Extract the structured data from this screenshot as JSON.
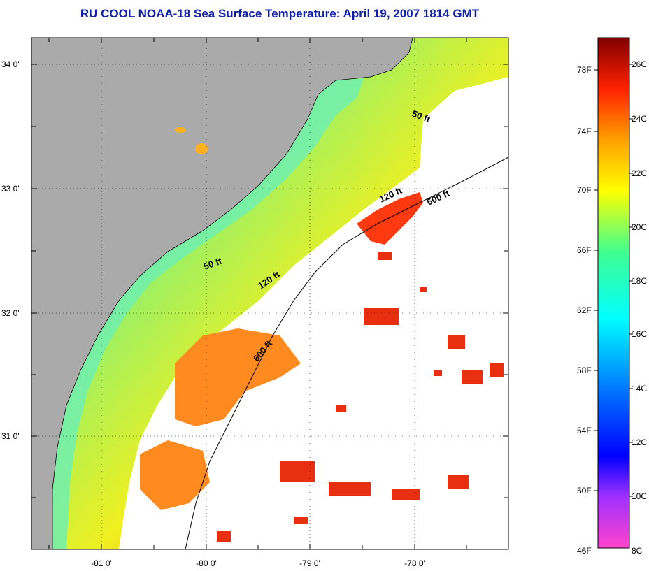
{
  "title": "RU COOL  NOAA-18  Sea Surface Temperature:  April 19, 2007 1814 GMT",
  "map": {
    "land_color": "#aaaaaa",
    "ocean_bg": "#ffffff",
    "lat_labels": [
      "34 0'",
      "33 0'",
      "32 0'",
      "31 0'"
    ],
    "lon_labels": [
      "-81 0'",
      "-80 0'",
      "-79 0'",
      "-78 0'"
    ],
    "contour_labels": [
      "50 ft",
      "120 ft",
      "600 ft",
      "50 ft",
      "120 ft",
      "600 ft"
    ]
  },
  "colorbar": {
    "f_labels": [
      "78F",
      "74F",
      "70F",
      "66F",
      "62F",
      "58F",
      "54F",
      "50F",
      "46F"
    ],
    "c_labels": [
      "26C",
      "24C",
      "22C",
      "20C",
      "18C",
      "16C",
      "14C",
      "12C",
      "10C",
      "8C"
    ],
    "colors": [
      "#ff44cc",
      "#a030ff",
      "#0000ff",
      "#0080ff",
      "#00ffff",
      "#40ff90",
      "#ffff00",
      "#ffa000",
      "#ff3000",
      "#c00000",
      "#800000"
    ]
  }
}
